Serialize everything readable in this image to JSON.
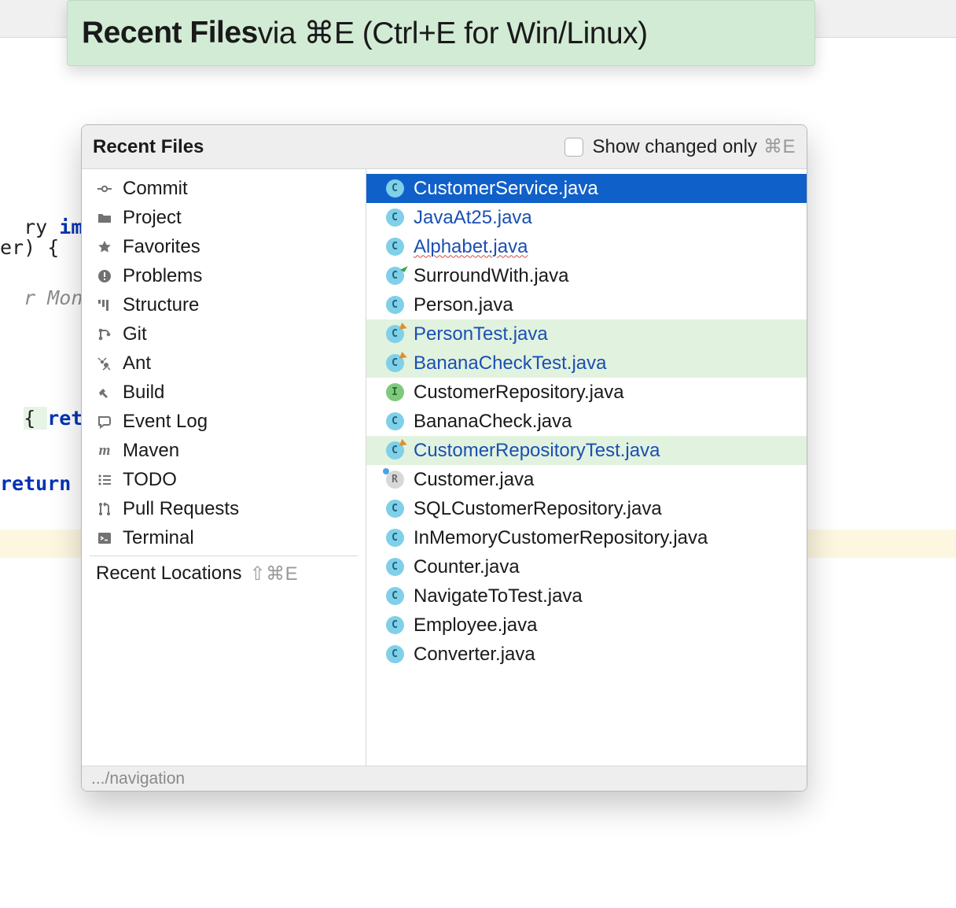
{
  "banner": {
    "bold": "Recent Files",
    "rest": " via ⌘E (Ctrl+E for Win/Linux)"
  },
  "background_code": {
    "line1_a": "ry ",
    "line1_b": "impl",
    "line2": "er) {",
    "line3_a": "r ",
    "line3_b": "Mongo",
    "line4_a": "{ ",
    "line4_b": "return",
    "line5": "return"
  },
  "popup": {
    "title": "Recent Files",
    "checkbox_label": "Show changed only",
    "checkbox_shortcut": "⌘E",
    "footer_path": ".../navigation",
    "recent_locations_label": "Recent Locations",
    "recent_locations_shortcut": "⇧⌘E",
    "tools": [
      {
        "label": "Commit",
        "icon": "commit"
      },
      {
        "label": "Project",
        "icon": "folder"
      },
      {
        "label": "Favorites",
        "icon": "star"
      },
      {
        "label": "Problems",
        "icon": "problems"
      },
      {
        "label": "Structure",
        "icon": "structure"
      },
      {
        "label": "Git",
        "icon": "git"
      },
      {
        "label": "Ant",
        "icon": "ant"
      },
      {
        "label": "Build",
        "icon": "build"
      },
      {
        "label": "Event Log",
        "icon": "eventlog"
      },
      {
        "label": "Maven",
        "icon": "maven"
      },
      {
        "label": "TODO",
        "icon": "todo"
      },
      {
        "label": "Pull Requests",
        "icon": "pullreq"
      },
      {
        "label": "Terminal",
        "icon": "terminal"
      }
    ],
    "files": [
      {
        "name": "CustomerService.java",
        "icon": "c",
        "selected": true
      },
      {
        "name": "JavaAt25.java",
        "icon": "c",
        "link": true
      },
      {
        "name": "Alphabet.java",
        "icon": "c",
        "link": true,
        "wavy": true
      },
      {
        "name": "SurroundWith.java",
        "icon": "c",
        "decor": "run"
      },
      {
        "name": "Person.java",
        "icon": "c"
      },
      {
        "name": "PersonTest.java",
        "icon": "c",
        "vcs": true,
        "link": true,
        "decor": "edit"
      },
      {
        "name": "BananaCheckTest.java",
        "icon": "c",
        "vcs": true,
        "link": true,
        "decor": "edit"
      },
      {
        "name": "CustomerRepository.java",
        "icon": "i"
      },
      {
        "name": "BananaCheck.java",
        "icon": "c"
      },
      {
        "name": "CustomerRepositoryTest.java",
        "icon": "c",
        "vcs": true,
        "link": true,
        "decor": "edit"
      },
      {
        "name": "Customer.java",
        "icon": "r",
        "decor": "rec"
      },
      {
        "name": "SQLCustomerRepository.java",
        "icon": "c"
      },
      {
        "name": "InMemoryCustomerRepository.java",
        "icon": "c"
      },
      {
        "name": "Counter.java",
        "icon": "c"
      },
      {
        "name": "NavigateToTest.java",
        "icon": "c"
      },
      {
        "name": "Employee.java",
        "icon": "c"
      },
      {
        "name": "Converter.java",
        "icon": "c"
      }
    ]
  }
}
